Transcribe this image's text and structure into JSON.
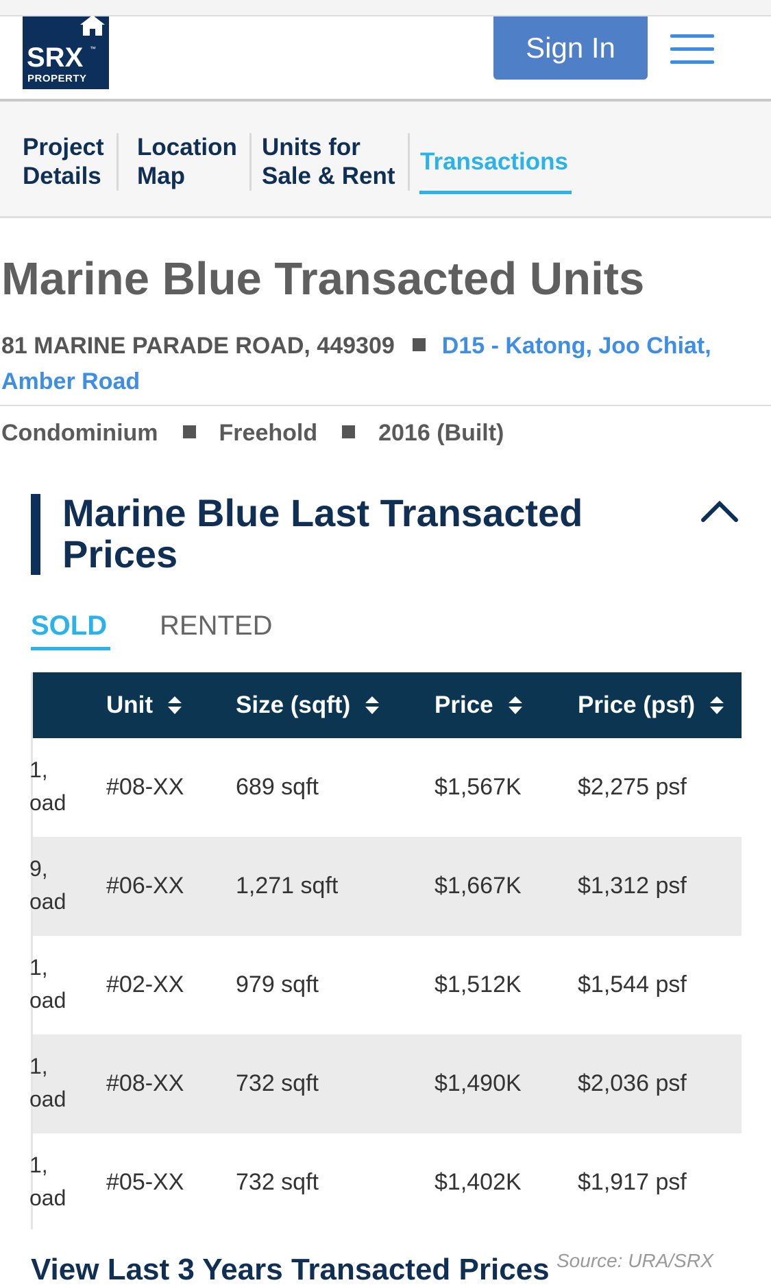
{
  "header": {
    "logo": {
      "brand": "SRX",
      "sub": "PROPERTY",
      "tm": "™"
    },
    "sign_in": "Sign In"
  },
  "nav_tabs": [
    {
      "line1": "Project",
      "line2": "Details"
    },
    {
      "line1": "Location",
      "line2": "Map"
    },
    {
      "line1": "Units for",
      "line2": "Sale & Rent"
    },
    {
      "line1": "Transactions",
      "active": true
    }
  ],
  "project": {
    "title": "Marine Blue Transacted Units",
    "address": "81 MARINE PARADE ROAD, 449309",
    "district_line1": "D15 - Katong, Joo Chiat,",
    "district_line2": "Amber Road",
    "type": "Condominium",
    "tenure": "Freehold",
    "built": "2016 (Built)"
  },
  "section": {
    "title_line1": "Marine Blue Last Transacted",
    "title_line2": "Prices"
  },
  "subtabs": {
    "sold": "SOLD",
    "rented": "RENTED"
  },
  "table": {
    "headers": [
      "Unit",
      "Size (sqft)",
      "Price",
      "Price (psf)"
    ],
    "rows": [
      {
        "clip1": "1,",
        "clip2": "oad",
        "unit": "#08-XX",
        "size": "689 sqft",
        "price": "$1,567K",
        "psf": "$2,275 psf"
      },
      {
        "clip1": "9,",
        "clip2": "oad",
        "unit": "#06-XX",
        "size": "1,271 sqft",
        "price": "$1,667K",
        "psf": "$1,312 psf"
      },
      {
        "clip1": "1,",
        "clip2": "oad",
        "unit": "#02-XX",
        "size": "979 sqft",
        "price": "$1,512K",
        "psf": "$1,544 psf"
      },
      {
        "clip1": "1,",
        "clip2": "oad",
        "unit": "#08-XX",
        "size": "732 sqft",
        "price": "$1,490K",
        "psf": "$2,036 psf"
      },
      {
        "clip1": "1,",
        "clip2": "oad",
        "unit": "#05-XX",
        "size": "732 sqft",
        "price": "$1,402K",
        "psf": "$1,917 psf"
      }
    ]
  },
  "footer": {
    "view_link": "View Last 3 Years Transacted Prices",
    "source": "Source: URA/SRX"
  },
  "colors": {
    "navy": "#0c2f5b",
    "accent": "#2ab3ea",
    "link": "#3e8ee6",
    "signin": "#4f7fc6",
    "table_header": "#0b3550"
  }
}
